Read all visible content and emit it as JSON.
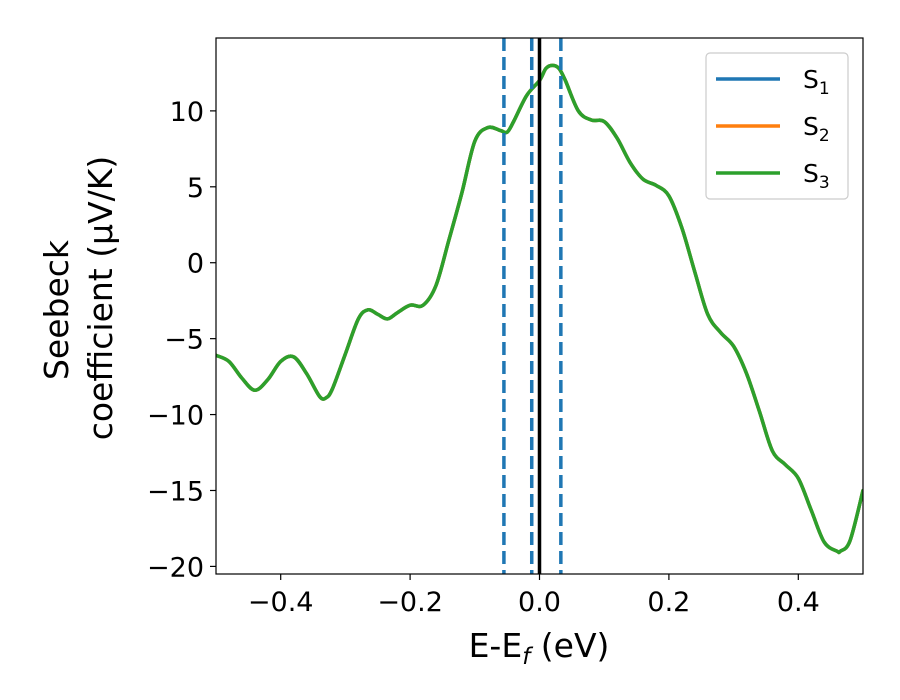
{
  "chart_data": {
    "type": "line",
    "xlabel": {
      "main": "E-E",
      "sub": "f",
      "suffix": " (eV)"
    },
    "ylabel": {
      "line1": "Seebeck",
      "line2": "coefficient  (μV/K)"
    },
    "xlim": [
      -0.5,
      0.5
    ],
    "ylim": [
      -20.5,
      14.8
    ],
    "xticks": [
      -0.4,
      -0.2,
      0.0,
      0.2,
      0.4
    ],
    "xtick_labels": [
      "−0.4",
      "−0.2",
      "0.0",
      "0.2",
      "0.4"
    ],
    "yticks": [
      -20,
      -15,
      -10,
      -5,
      0,
      5,
      10
    ],
    "ytick_labels": [
      "−20",
      "−15",
      "−10",
      "−5",
      "0",
      "5",
      "10"
    ],
    "grid": false,
    "legend_position": "top-right",
    "vertical_lines": [
      {
        "x": -0.055,
        "style": "dashed",
        "color": "#1f77b4"
      },
      {
        "x": -0.012,
        "style": "dashed",
        "color": "#1f77b4"
      },
      {
        "x": 0.033,
        "style": "dashed",
        "color": "#1f77b4"
      },
      {
        "x": 0.0,
        "style": "solid",
        "color": "#000000"
      }
    ],
    "series": [
      {
        "name": "S",
        "sub": "1",
        "color": "#1f77b4"
      },
      {
        "name": "S",
        "sub": "2",
        "color": "#ff7f0e"
      },
      {
        "name": "S",
        "sub": "3",
        "color": "#2ca02c"
      }
    ],
    "x": [
      -0.5,
      -0.48,
      -0.46,
      -0.44,
      -0.42,
      -0.4,
      -0.38,
      -0.36,
      -0.34,
      -0.33,
      -0.32,
      -0.3,
      -0.28,
      -0.265,
      -0.25,
      -0.235,
      -0.22,
      -0.2,
      -0.18,
      -0.16,
      -0.14,
      -0.12,
      -0.1,
      -0.08,
      -0.06,
      -0.05,
      -0.04,
      -0.02,
      0.0,
      0.01,
      0.02,
      0.03,
      0.04,
      0.06,
      0.08,
      0.1,
      0.12,
      0.14,
      0.16,
      0.18,
      0.2,
      0.22,
      0.24,
      0.26,
      0.28,
      0.3,
      0.32,
      0.34,
      0.36,
      0.38,
      0.4,
      0.42,
      0.44,
      0.46,
      0.465,
      0.48,
      0.5
    ],
    "y": [
      -6.1,
      -6.5,
      -7.6,
      -8.4,
      -7.7,
      -6.5,
      -6.2,
      -7.3,
      -8.8,
      -8.9,
      -8.3,
      -6.0,
      -3.7,
      -3.1,
      -3.4,
      -3.7,
      -3.3,
      -2.8,
      -2.8,
      -1.5,
      1.5,
      4.6,
      8.0,
      8.9,
      8.7,
      8.6,
      9.3,
      11.0,
      12.0,
      12.8,
      13.0,
      12.8,
      12.0,
      10.0,
      9.4,
      9.3,
      8.2,
      6.6,
      5.5,
      5.1,
      4.4,
      2.3,
      -0.6,
      -3.4,
      -4.6,
      -5.5,
      -7.3,
      -9.8,
      -12.4,
      -13.3,
      -14.2,
      -16.3,
      -18.4,
      -19.0,
      -19.0,
      -18.3,
      -15.0
    ]
  }
}
